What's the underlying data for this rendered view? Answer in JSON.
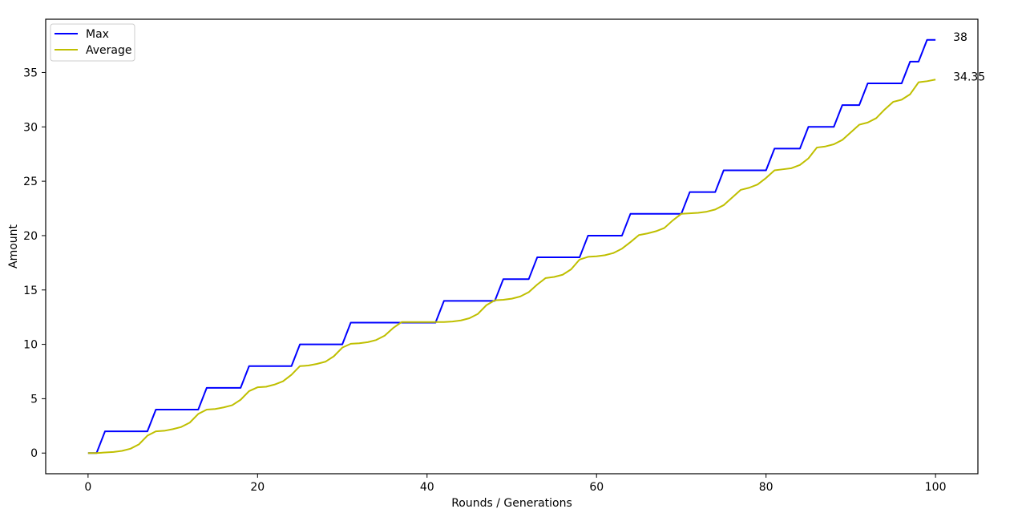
{
  "chart_data": {
    "type": "line",
    "title": "",
    "xlabel": "Rounds / Generations",
    "ylabel": "Amount",
    "xlim": [
      -5,
      105
    ],
    "ylim": [
      -1.9,
      39.9
    ],
    "xticks": [
      0,
      20,
      40,
      60,
      80,
      100
    ],
    "yticks": [
      0,
      5,
      10,
      15,
      20,
      25,
      30,
      35
    ],
    "grid": false,
    "legend": "top-left",
    "x": [
      0,
      1,
      2,
      3,
      4,
      5,
      6,
      7,
      8,
      9,
      10,
      11,
      12,
      13,
      14,
      15,
      16,
      17,
      18,
      19,
      20,
      21,
      22,
      23,
      24,
      25,
      26,
      27,
      28,
      29,
      30,
      31,
      32,
      33,
      34,
      35,
      36,
      37,
      38,
      39,
      40,
      41,
      42,
      43,
      44,
      45,
      46,
      47,
      48,
      49,
      50,
      51,
      52,
      53,
      54,
      55,
      56,
      57,
      58,
      59,
      60,
      61,
      62,
      63,
      64,
      65,
      66,
      67,
      68,
      69,
      70,
      71,
      72,
      73,
      74,
      75,
      76,
      77,
      78,
      79,
      80,
      81,
      82,
      83,
      84,
      85,
      86,
      87,
      88,
      89,
      90,
      91,
      92,
      93,
      94,
      95,
      96,
      97,
      98,
      99,
      100
    ],
    "series": [
      {
        "name": "Max",
        "color": "#0000ff",
        "values": [
          0,
          0,
          2,
          2,
          2,
          2,
          2,
          2,
          4,
          4,
          4,
          4,
          4,
          4,
          6,
          6,
          6,
          6,
          6,
          8,
          8,
          8,
          8,
          8,
          8,
          10,
          10,
          10,
          10,
          10,
          10,
          12,
          12,
          12,
          12,
          12,
          12,
          12,
          12,
          12,
          12,
          12,
          14,
          14,
          14,
          14,
          14,
          14,
          14,
          16,
          16,
          16,
          16,
          18,
          18,
          18,
          18,
          18,
          18,
          20,
          20,
          20,
          20,
          20,
          22,
          22,
          22,
          22,
          22,
          22,
          22,
          24,
          24,
          24,
          24,
          26,
          26,
          26,
          26,
          26,
          26,
          28,
          28,
          28,
          28,
          30,
          30,
          30,
          30,
          32,
          32,
          32,
          34,
          34,
          34,
          34,
          34,
          36,
          36,
          38,
          38
        ]
      },
      {
        "name": "Average",
        "color": "#bfbf00",
        "values": [
          0,
          0,
          0.05,
          0.1,
          0.2,
          0.4,
          0.8,
          1.6,
          2,
          2.05,
          2.2,
          2.4,
          2.8,
          3.6,
          4,
          4.05,
          4.2,
          4.4,
          4.9,
          5.7,
          6.05,
          6.1,
          6.3,
          6.6,
          7.2,
          8,
          8.05,
          8.2,
          8.4,
          8.9,
          9.7,
          10.05,
          10.1,
          10.2,
          10.4,
          10.8,
          11.5,
          12.05,
          12.05,
          12.05,
          12.05,
          12.05,
          12.05,
          12.1,
          12.2,
          12.4,
          12.8,
          13.6,
          14.05,
          14.1,
          14.2,
          14.4,
          14.8,
          15.5,
          16.1,
          16.2,
          16.4,
          16.9,
          17.8,
          18.05,
          18.1,
          18.2,
          18.4,
          18.8,
          19.4,
          20.05,
          20.2,
          20.4,
          20.7,
          21.4,
          22,
          22.05,
          22.1,
          22.2,
          22.4,
          22.8,
          23.5,
          24.2,
          24.4,
          24.7,
          25.3,
          26,
          26.1,
          26.2,
          26.5,
          27.1,
          28.1,
          28.2,
          28.4,
          28.8,
          29.5,
          30.2,
          30.4,
          30.8,
          31.6,
          32.3,
          32.5,
          33,
          34.1,
          34.2,
          34.35
        ]
      }
    ],
    "annotations": [
      {
        "series": "Max",
        "text": "38"
      },
      {
        "series": "Average",
        "text": "34.35"
      }
    ]
  }
}
